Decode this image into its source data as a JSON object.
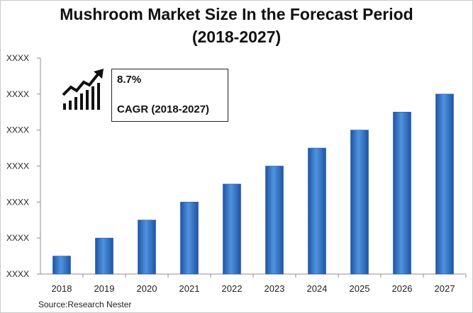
{
  "chart_data": {
    "type": "bar",
    "title_line1": "Mushroom Market Size In the Forecast Period",
    "title_line2": "(2018-2027)",
    "categories": [
      "2018",
      "2019",
      "2020",
      "2021",
      "2022",
      "2023",
      "2024",
      "2025",
      "2026",
      "2027"
    ],
    "values": [
      1,
      2,
      3,
      4,
      5,
      6,
      7,
      8,
      9,
      10
    ],
    "y_tick_labels": [
      "XXXX",
      "XXXX",
      "XXXX",
      "XXXX",
      "XXXX",
      "XXXX",
      "XXXX"
    ],
    "ylim": [
      0,
      12
    ],
    "xlabel": "",
    "ylabel": "",
    "bar_color": "#3d7fd0",
    "bar_color_dark": "#1f55a3",
    "grid": false
  },
  "annotation": {
    "cagr_value": "8.7%",
    "cagr_label": "CAGR (2018-2027)",
    "icon": "growth-chart-icon"
  },
  "source": "Source:Research Nester"
}
